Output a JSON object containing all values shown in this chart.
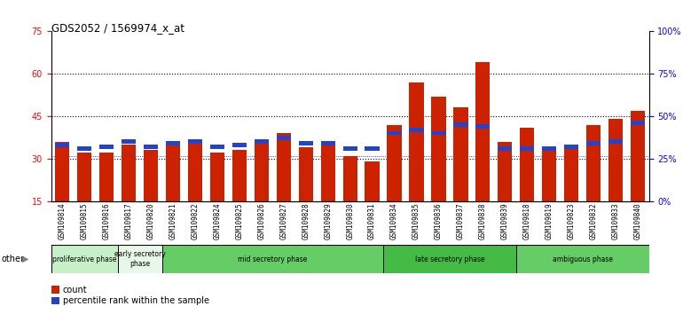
{
  "title": "GDS2052 / 1569974_x_at",
  "samples": [
    "GSM109814",
    "GSM109815",
    "GSM109816",
    "GSM109817",
    "GSM109820",
    "GSM109821",
    "GSM109822",
    "GSM109824",
    "GSM109825",
    "GSM109826",
    "GSM109827",
    "GSM109828",
    "GSM109829",
    "GSM109830",
    "GSM109831",
    "GSM109834",
    "GSM109835",
    "GSM109836",
    "GSM109837",
    "GSM109838",
    "GSM109839",
    "GSM109818",
    "GSM109819",
    "GSM109823",
    "GSM109832",
    "GSM109833",
    "GSM109840"
  ],
  "count_values": [
    36,
    32,
    32,
    35,
    33,
    35,
    36,
    32,
    33,
    36,
    39,
    34,
    35,
    31,
    29,
    42,
    57,
    52,
    48,
    64,
    36,
    41,
    33,
    34,
    42,
    44,
    47
  ],
  "percentile_values": [
    33,
    31,
    32,
    35,
    32,
    34,
    35,
    32,
    33,
    35,
    37,
    34,
    34,
    31,
    31,
    40,
    42,
    40,
    45,
    44,
    31,
    31,
    31,
    32,
    34,
    35,
    46
  ],
  "phases": [
    {
      "label": "proliferative phase",
      "start": 0,
      "end": 3,
      "color": "#c8f0c8"
    },
    {
      "label": "early secretory\nphase",
      "start": 3,
      "end": 5,
      "color": "#e8f8e8"
    },
    {
      "label": "mid secretory phase",
      "start": 5,
      "end": 15,
      "color": "#66cc66"
    },
    {
      "label": "late secretory phase",
      "start": 15,
      "end": 21,
      "color": "#44bb44"
    },
    {
      "label": "ambiguous phase",
      "start": 21,
      "end": 27,
      "color": "#66cc66"
    }
  ],
  "ylim_left": [
    15,
    75
  ],
  "ylim_right": [
    0,
    100
  ],
  "yticks_left": [
    15,
    30,
    45,
    60,
    75
  ],
  "yticks_right": [
    0,
    25,
    50,
    75,
    100
  ],
  "bar_color_red": "#cc2200",
  "bar_color_blue": "#2244cc",
  "tick_bg_color": "#d4d4d4"
}
